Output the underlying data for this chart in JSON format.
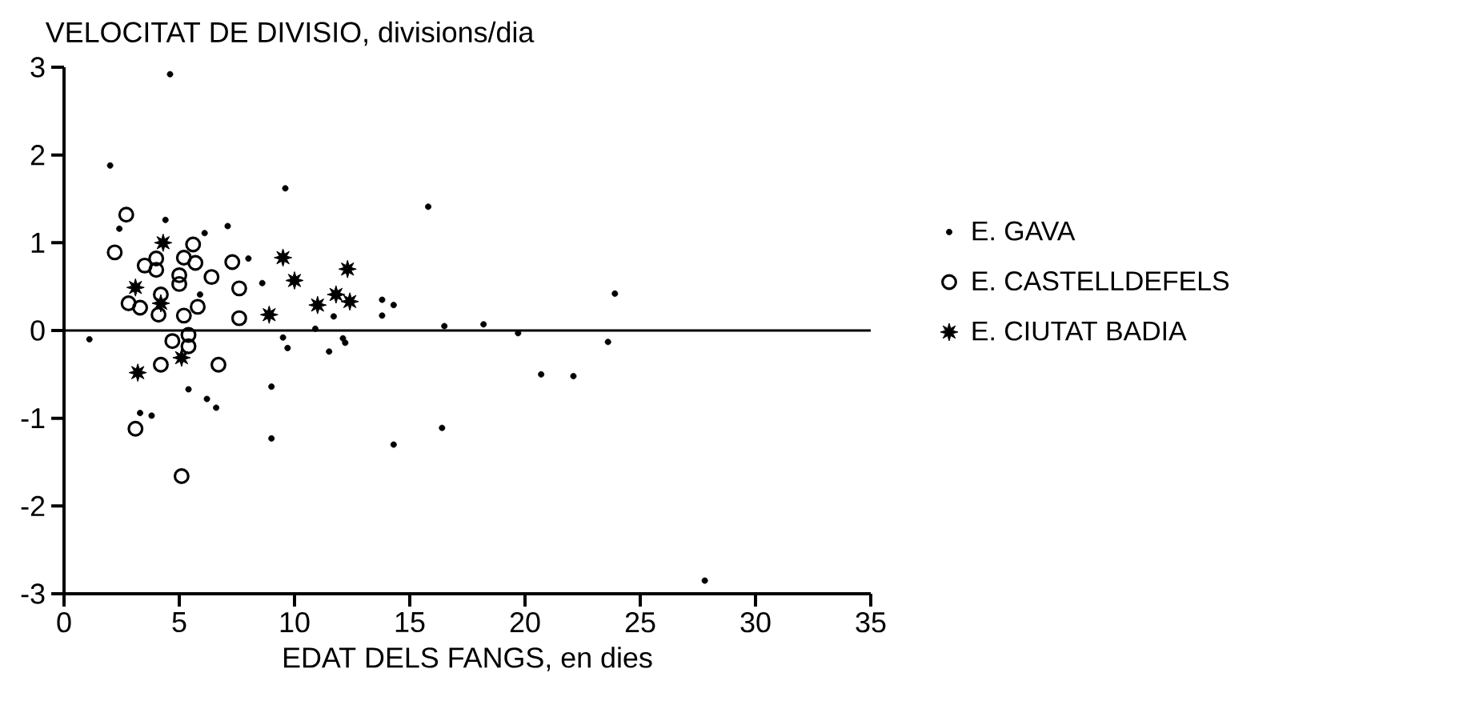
{
  "chart_data": {
    "type": "scatter",
    "ylabel": "VELOCITAT DE DIVISIO, divisions/dia",
    "xlabel": "EDAT DELS FANGS, en dies",
    "xlim": [
      0,
      35
    ],
    "ylim": [
      -3,
      3
    ],
    "xticks": [
      0,
      5,
      10,
      15,
      20,
      25,
      30,
      35
    ],
    "yticks": [
      -3,
      -2,
      -1,
      0,
      1,
      2,
      3
    ],
    "grid": false,
    "legend": "right",
    "ref_lines": [
      {
        "axis": "y",
        "value": 0
      }
    ],
    "series": [
      {
        "name": "E. GAVA",
        "color": "#000000",
        "marker": "dot",
        "x": [
          4.6,
          2.0,
          2.4,
          4.4,
          6.1,
          7.1,
          9.6,
          8.0,
          8.6,
          15.8,
          5.9,
          13.8,
          14.3,
          13.8,
          11.7,
          10.9,
          16.5,
          18.2,
          19.7,
          23.9,
          23.6,
          1.1,
          9.5,
          9.7,
          11.5,
          12.1,
          12.2,
          20.7,
          22.1,
          5.4,
          6.2,
          6.6,
          9.0,
          9.0,
          3.3,
          3.8,
          16.4,
          14.3,
          27.8
        ],
        "values": [
          2.92,
          1.88,
          1.16,
          1.26,
          1.11,
          1.19,
          1.62,
          0.82,
          0.54,
          1.41,
          0.41,
          0.35,
          0.29,
          0.17,
          0.16,
          0.02,
          0.05,
          0.07,
          -0.03,
          0.42,
          -0.13,
          -0.1,
          -0.08,
          -0.2,
          -0.24,
          -0.09,
          -0.14,
          -0.5,
          -0.52,
          -0.67,
          -0.78,
          -0.88,
          -0.64,
          -1.23,
          -0.94,
          -0.97,
          -1.11,
          -1.3,
          -2.85
        ]
      },
      {
        "name": "E. CASTELLDEFELS",
        "color": "#000000",
        "marker": "circle",
        "x": [
          2.7,
          2.2,
          2.8,
          3.3,
          3.5,
          4.0,
          4.0,
          4.2,
          4.1,
          5.0,
          5.0,
          5.2,
          5.6,
          5.7,
          5.8,
          5.2,
          6.4,
          7.3,
          7.6,
          7.6,
          4.7,
          5.4,
          5.4,
          4.2,
          6.7,
          3.1,
          5.1
        ],
        "values": [
          1.32,
          0.89,
          0.31,
          0.26,
          0.74,
          0.82,
          0.69,
          0.41,
          0.18,
          0.63,
          0.53,
          0.83,
          0.98,
          0.77,
          0.27,
          0.17,
          0.61,
          0.78,
          0.48,
          0.14,
          -0.12,
          -0.18,
          -0.05,
          -0.39,
          -0.39,
          -1.12,
          -1.66
        ]
      },
      {
        "name": "E. CIUTAT BADIA",
        "color": "#000000",
        "marker": "star",
        "x": [
          3.1,
          4.3,
          4.2,
          3.2,
          5.1,
          9.5,
          10.0,
          8.9,
          11.0,
          11.8,
          12.4,
          12.3
        ],
        "values": [
          0.49,
          1.0,
          0.31,
          -0.48,
          -0.31,
          0.83,
          0.57,
          0.18,
          0.29,
          0.41,
          0.33,
          0.7
        ]
      }
    ]
  }
}
